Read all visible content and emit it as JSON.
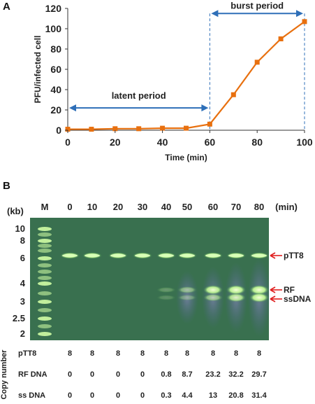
{
  "chart_data": [
    {
      "type": "line",
      "panel_label": "A",
      "ylabel": "PFU/infected cell",
      "xlabel": "Time (min)",
      "xlim": [
        0,
        100
      ],
      "ylim": [
        0,
        120
      ],
      "xticks": [
        0,
        20,
        40,
        60,
        80,
        100
      ],
      "yticks": [
        0,
        20,
        40,
        60,
        80,
        100,
        120
      ],
      "series": [
        {
          "x": [
            0,
            10,
            20,
            30,
            40,
            50,
            60,
            70,
            80,
            90,
            100
          ],
          "values": [
            1,
            1,
            1.5,
            1.5,
            2,
            2,
            6,
            35,
            67,
            90,
            107
          ]
        }
      ],
      "line_color": "#E8700F",
      "annotations": {
        "latent_period": {
          "text": "latent period",
          "x_start": 0,
          "x_end": 60,
          "y": 22
        },
        "burst_period": {
          "text": "burst period",
          "x_start": 60,
          "x_end": 100,
          "y": 115
        },
        "arrow_color": "#2E6FB8",
        "divider_x": [
          60,
          100
        ]
      }
    },
    {
      "type": "table",
      "panel_label": "B",
      "ladder_unit": "(kb)",
      "ladder_lane": "M",
      "ladder_sizes": [
        "10",
        "8",
        "6",
        "4",
        "3",
        "2.5",
        "2"
      ],
      "time_unit": "(min)",
      "lanes": [
        "0",
        "10",
        "20",
        "30",
        "40",
        "50",
        "60",
        "70",
        "80"
      ],
      "bands": [
        "pTT8",
        "RF",
        "ssDNA"
      ],
      "band_arrow_color": "#E02020",
      "copy_number_label": "Copy number",
      "rows": [
        {
          "label": "pTT8",
          "values": [
            "8",
            "8",
            "8",
            "8",
            "8",
            "8",
            "8",
            "8",
            "8"
          ]
        },
        {
          "label": "RF DNA",
          "values": [
            "0",
            "0",
            "0",
            "0",
            "0.8",
            "8.7",
            "23.2",
            "32.2",
            "29.7"
          ]
        },
        {
          "label": "ss DNA",
          "values": [
            "0",
            "0",
            "0",
            "0",
            "0.3",
            "4.4",
            "13",
            "20.8",
            "31.4"
          ]
        }
      ]
    }
  ]
}
